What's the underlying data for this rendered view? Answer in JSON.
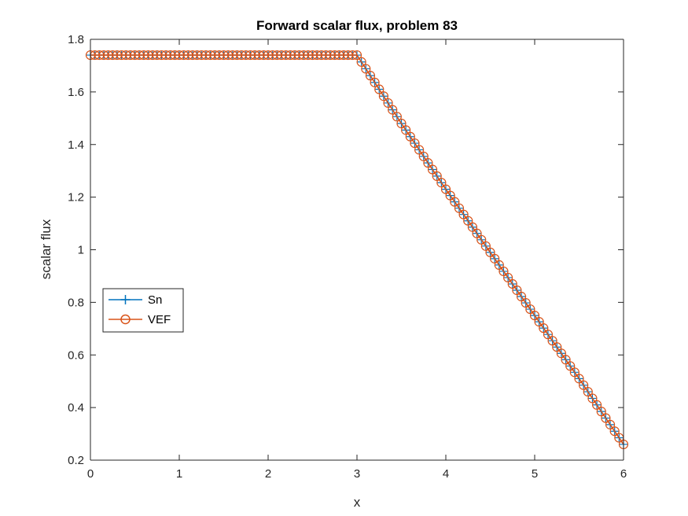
{
  "chart_data": {
    "type": "line",
    "title": "Forward scalar flux, problem 83",
    "xlabel": "x",
    "ylabel": "scalar flux",
    "xlim": [
      0,
      6
    ],
    "ylim": [
      0.2,
      1.8
    ],
    "xticks": [
      0,
      1,
      2,
      3,
      4,
      5,
      6
    ],
    "yticks": [
      0.2,
      0.4,
      0.6,
      0.8,
      1,
      1.2,
      1.4,
      1.6,
      1.8
    ],
    "grid": false,
    "legend_position": "middle-left",
    "points_per_series": 121,
    "profile": {
      "x": [
        0,
        3.0,
        3.5,
        4.0,
        4.5,
        5.0,
        5.5,
        6.0
      ],
      "y": [
        1.74,
        1.74,
        1.48,
        1.23,
        0.99,
        0.75,
        0.51,
        0.26
      ]
    },
    "series": [
      {
        "name": "Sn",
        "marker": "plus",
        "color": "#0072BD"
      },
      {
        "name": "VEF",
        "marker": "circle",
        "color": "#D95319"
      }
    ]
  }
}
